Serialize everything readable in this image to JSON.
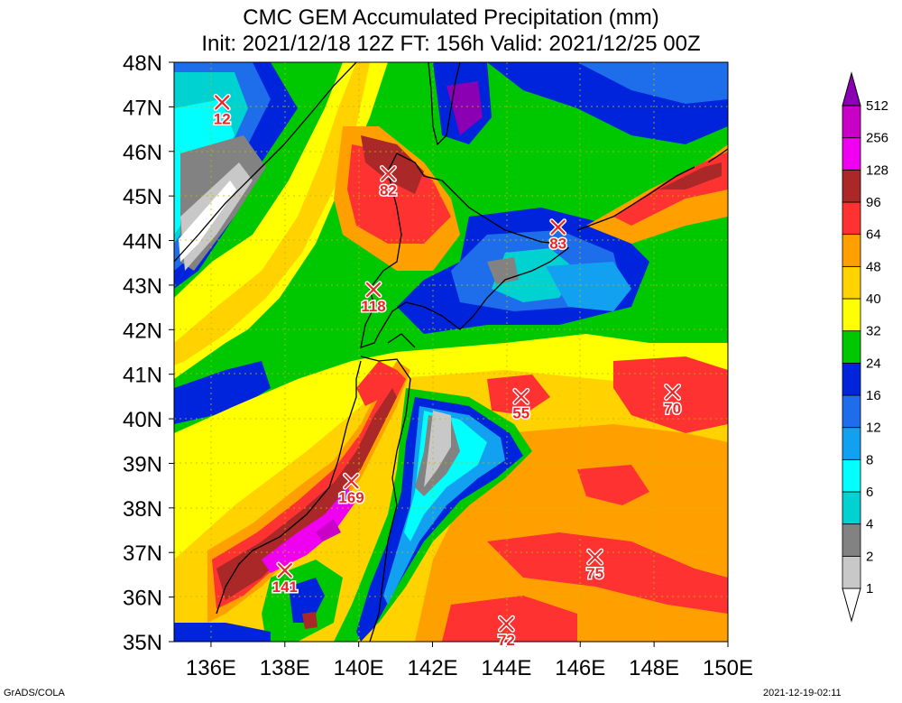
{
  "title": {
    "line1": "CMC GEM Accumulated Precipitation (mm)",
    "line2": "Init: 2021/12/18 12Z  FT: 156h  Valid: 2021/12/25 00Z"
  },
  "axes": {
    "lat_labels": [
      "48N",
      "47N",
      "46N",
      "45N",
      "44N",
      "43N",
      "42N",
      "41N",
      "40N",
      "39N",
      "38N",
      "37N",
      "36N",
      "35N"
    ],
    "lon_labels": [
      "136E",
      "138E",
      "140E",
      "142E",
      "144E",
      "146E",
      "148E",
      "150E"
    ],
    "lat_range": [
      35,
      48
    ],
    "lon_range": [
      135,
      150
    ]
  },
  "colorbar": {
    "levels": [
      "1",
      "2",
      "4",
      "6",
      "8",
      "12",
      "16",
      "24",
      "32",
      "40",
      "48",
      "64",
      "96",
      "128",
      "256",
      "512"
    ],
    "colors": [
      "#c8c8c8",
      "#828282",
      "#00d2d2",
      "#00ffff",
      "#12a0f0",
      "#1e6eeb",
      "#0024dc",
      "#00c800",
      "#ffff00",
      "#ffd200",
      "#ffa000",
      "#ff3232",
      "#aa2828",
      "#f000f0",
      "#c800c8",
      "#8c00b4",
      "#500080"
    ]
  },
  "stations": [
    {
      "name": "s1",
      "lat": 47.1,
      "lon": 136.3,
      "value": "12"
    },
    {
      "name": "s2",
      "lat": 45.5,
      "lon": 140.8,
      "value": "82"
    },
    {
      "name": "s3",
      "lat": 44.3,
      "lon": 145.4,
      "value": "83"
    },
    {
      "name": "s4",
      "lat": 42.9,
      "lon": 140.4,
      "value": "118"
    },
    {
      "name": "s5",
      "lat": 40.5,
      "lon": 144.4,
      "value": "55"
    },
    {
      "name": "s6",
      "lat": 40.6,
      "lon": 148.5,
      "value": "70"
    },
    {
      "name": "s7",
      "lat": 38.6,
      "lon": 139.8,
      "value": "169"
    },
    {
      "name": "s8",
      "lat": 36.9,
      "lon": 146.4,
      "value": "75"
    },
    {
      "name": "s9",
      "lat": 36.6,
      "lon": 138.0,
      "value": "141"
    },
    {
      "name": "s10",
      "lat": 35.4,
      "lon": 144.0,
      "value": "72"
    }
  ],
  "footer": {
    "left": "GrADS/COLA",
    "right": "2021-12-19-02:11"
  }
}
